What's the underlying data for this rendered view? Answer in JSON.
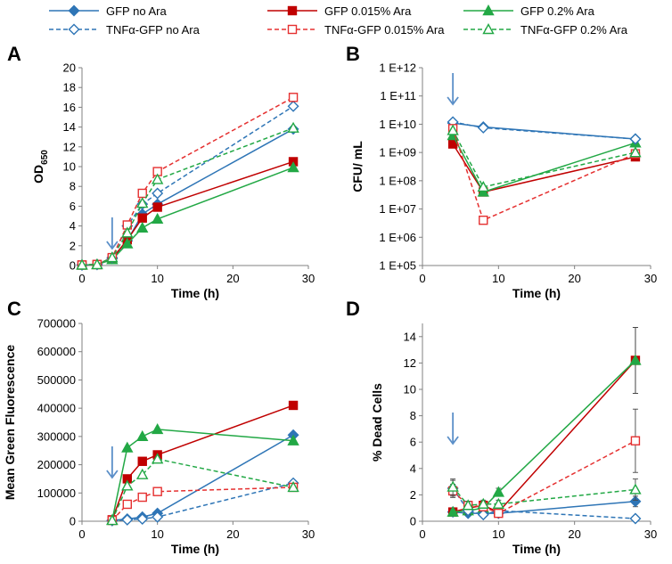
{
  "legend": [
    {
      "label": "GFP no Ara",
      "series": "gfp_no"
    },
    {
      "label": "GFP 0.015% Ara",
      "series": "gfp_015"
    },
    {
      "label": "GFP 0.2% Ara",
      "series": "gfp_02"
    },
    {
      "label": "TNFα-GFP no Ara",
      "series": "tnf_no"
    },
    {
      "label": "TNFα-GFP 0.015% Ara",
      "series": "tnf_015"
    },
    {
      "label": "TNFα-GFP 0.2% Ara",
      "series": "tnf_02"
    }
  ],
  "series_styles": {
    "gfp_no": {
      "color": "#2E75B6",
      "marker": "diamond",
      "filled": true,
      "dashed": false
    },
    "gfp_015": {
      "color": "#C00000",
      "marker": "square",
      "filled": true,
      "dashed": false
    },
    "gfp_02": {
      "color": "#22A845",
      "marker": "triangle",
      "filled": true,
      "dashed": false
    },
    "tnf_no": {
      "color": "#2E75B6",
      "marker": "diamond",
      "filled": false,
      "dashed": true
    },
    "tnf_015": {
      "color": "#E53030",
      "marker": "square",
      "filled": false,
      "dashed": true
    },
    "tnf_02": {
      "color": "#22A845",
      "marker": "triangle",
      "filled": false,
      "dashed": true
    }
  },
  "arrow_color": "#5B8FC8",
  "chart_data": [
    {
      "panel": "A",
      "type": "line",
      "xlabel": "Time (h)",
      "ylabel": "OD",
      "ylabel_sub": "650",
      "xlim": [
        0,
        30
      ],
      "ylim": [
        0,
        20
      ],
      "yscale": "linear",
      "xticks": [
        0,
        10,
        20,
        30
      ],
      "yticks": [
        0,
        2,
        4,
        6,
        8,
        10,
        12,
        14,
        16,
        18,
        20
      ],
      "ytick_labels": [
        "0",
        "2",
        "4",
        "6",
        "8",
        "10",
        "12",
        "14",
        "16",
        "18",
        "20"
      ],
      "arrow_x": 4,
      "series": [
        {
          "key": "gfp_no",
          "x": [
            0,
            2,
            4,
            6,
            8,
            10,
            28
          ],
          "y": [
            0.05,
            0.1,
            0.7,
            2.5,
            5.2,
            6.2,
            13.8
          ]
        },
        {
          "key": "gfp_015",
          "x": [
            0,
            2,
            4,
            6,
            8,
            10,
            28
          ],
          "y": [
            0.05,
            0.1,
            0.7,
            2.6,
            4.8,
            5.9,
            10.5
          ]
        },
        {
          "key": "gfp_02",
          "x": [
            0,
            2,
            4,
            6,
            8,
            10,
            28
          ],
          "y": [
            0.05,
            0.1,
            0.6,
            2.2,
            3.8,
            4.7,
            9.9
          ]
        },
        {
          "key": "tnf_no",
          "x": [
            0,
            2,
            4,
            6,
            8,
            10,
            28
          ],
          "y": [
            0.05,
            0.1,
            0.8,
            4.0,
            6.2,
            7.3,
            16.1
          ]
        },
        {
          "key": "tnf_015",
          "x": [
            0,
            2,
            4,
            6,
            8,
            10,
            28
          ],
          "y": [
            0.05,
            0.1,
            0.8,
            4.1,
            7.3,
            9.5,
            17.0
          ]
        },
        {
          "key": "tnf_02",
          "x": [
            0,
            2,
            4,
            6,
            8,
            10,
            28
          ],
          "y": [
            0.05,
            0.1,
            0.8,
            3.3,
            6.3,
            8.7,
            13.9
          ]
        }
      ]
    },
    {
      "panel": "B",
      "type": "line",
      "xlabel": "Time (h)",
      "ylabel": "CFU/ mL",
      "ylabel_sub": "",
      "xlim": [
        0,
        30
      ],
      "ylim": [
        5,
        12
      ],
      "yscale": "log10",
      "xticks": [
        0,
        10,
        20,
        30
      ],
      "yticks": [
        5,
        6,
        7,
        8,
        9,
        10,
        11,
        12
      ],
      "ytick_labels": [
        "1 E+05",
        "1 E+06",
        "1 E+07",
        "1 E+08",
        "1 E+09",
        "1 E+10",
        "1 E+11",
        "1 E+12"
      ],
      "arrow_x": 4,
      "series": [
        {
          "key": "gfp_no",
          "x": [
            4,
            8,
            28
          ],
          "y": [
            11000000000.0,
            8000000000.0,
            3000000000.0
          ]
        },
        {
          "key": "gfp_015",
          "x": [
            4,
            8,
            28
          ],
          "y": [
            2000000000.0,
            40000000.0,
            700000000.0
          ]
        },
        {
          "key": "gfp_02",
          "x": [
            4,
            8,
            28
          ],
          "y": [
            4000000000.0,
            40000000.0,
            2200000000.0
          ]
        },
        {
          "key": "tnf_no",
          "x": [
            4,
            8,
            28
          ],
          "y": [
            12000000000.0,
            7500000000.0,
            3000000000.0
          ]
        },
        {
          "key": "tnf_015",
          "x": [
            4,
            8,
            28
          ],
          "y": [
            7000000000.0,
            4000000.0,
            900000000.0
          ]
        },
        {
          "key": "tnf_02",
          "x": [
            4,
            8,
            28
          ],
          "y": [
            6000000000.0,
            60000000.0,
            1000000000.0
          ]
        }
      ]
    },
    {
      "panel": "C",
      "type": "line",
      "xlabel": "Time (h)",
      "ylabel": "Mean Green Fluorescence",
      "ylabel_sub": "",
      "xlim": [
        0,
        30
      ],
      "ylim": [
        0,
        700000
      ],
      "yscale": "linear",
      "xticks": [
        0,
        10,
        20,
        30
      ],
      "yticks": [
        0,
        100000,
        200000,
        300000,
        400000,
        500000,
        600000,
        700000
      ],
      "ytick_labels": [
        "0",
        "100000",
        "200000",
        "300000",
        "400000",
        "500000",
        "600000",
        "700000"
      ],
      "arrow_x": 4,
      "series": [
        {
          "key": "gfp_no",
          "x": [
            4,
            6,
            8,
            10,
            28
          ],
          "y": [
            3000,
            8000,
            15000,
            28000,
            305000
          ]
        },
        {
          "key": "gfp_015",
          "x": [
            4,
            6,
            8,
            10,
            28
          ],
          "y": [
            5000,
            150000,
            212000,
            235000,
            410000
          ]
        },
        {
          "key": "gfp_02",
          "x": [
            4,
            6,
            8,
            10,
            28
          ],
          "y": [
            4000,
            260000,
            300000,
            325000,
            285000
          ]
        },
        {
          "key": "tnf_no",
          "x": [
            4,
            6,
            8,
            10,
            28
          ],
          "y": [
            2000,
            5000,
            8000,
            15000,
            135000
          ]
        },
        {
          "key": "tnf_015",
          "x": [
            4,
            6,
            8,
            10,
            28
          ],
          "y": [
            3000,
            60000,
            85000,
            105000,
            120000
          ]
        },
        {
          "key": "tnf_02",
          "x": [
            4,
            6,
            8,
            10,
            28
          ],
          "y": [
            3000,
            125000,
            165000,
            220000,
            120000
          ]
        }
      ]
    },
    {
      "panel": "D",
      "type": "line",
      "xlabel": "Time (h)",
      "ylabel": "% Dead Cells",
      "ylabel_sub": "",
      "xlim": [
        0,
        30
      ],
      "ylim": [
        0,
        15
      ],
      "yscale": "linear",
      "xticks": [
        0,
        10,
        20,
        30
      ],
      "yticks": [
        0,
        2,
        4,
        6,
        8,
        10,
        12,
        14
      ],
      "ytick_labels": [
        "0",
        "2",
        "4",
        "6",
        "8",
        "10",
        "12",
        "14"
      ],
      "arrow_x": 4,
      "series": [
        {
          "key": "gfp_no",
          "x": [
            4,
            6,
            8,
            10,
            28
          ],
          "y": [
            0.7,
            0.6,
            0.6,
            0.6,
            1.5
          ],
          "err": [
            0.2,
            0.2,
            0.2,
            0.2,
            0.4
          ]
        },
        {
          "key": "gfp_015",
          "x": [
            4,
            6,
            8,
            10,
            28
          ],
          "y": [
            0.7,
            1.0,
            1.2,
            0.7,
            12.2
          ],
          "err": [
            0.2,
            0.3,
            0.3,
            0.2,
            2.5
          ]
        },
        {
          "key": "gfp_02",
          "x": [
            4,
            6,
            8,
            10,
            28
          ],
          "y": [
            0.7,
            0.8,
            1.0,
            2.2,
            12.2
          ],
          "err": [
            0.2,
            0.2,
            0.2,
            0.3,
            2.5
          ]
        },
        {
          "key": "tnf_no",
          "x": [
            4,
            6,
            8,
            10,
            28
          ],
          "y": [
            2.5,
            0.8,
            0.5,
            0.8,
            0.2
          ],
          "err": [
            0.6,
            0.3,
            0.2,
            0.2,
            0.1
          ]
        },
        {
          "key": "tnf_015",
          "x": [
            4,
            6,
            8,
            10,
            28
          ],
          "y": [
            2.3,
            1.2,
            1.1,
            0.6,
            6.1
          ],
          "err": [
            0.5,
            0.3,
            0.3,
            0.2,
            2.4
          ]
        },
        {
          "key": "tnf_02",
          "x": [
            4,
            6,
            8,
            10,
            28
          ],
          "y": [
            2.6,
            1.2,
            1.3,
            1.3,
            2.4
          ],
          "err": [
            0.6,
            0.3,
            0.3,
            0.3,
            0.8
          ]
        }
      ]
    }
  ]
}
